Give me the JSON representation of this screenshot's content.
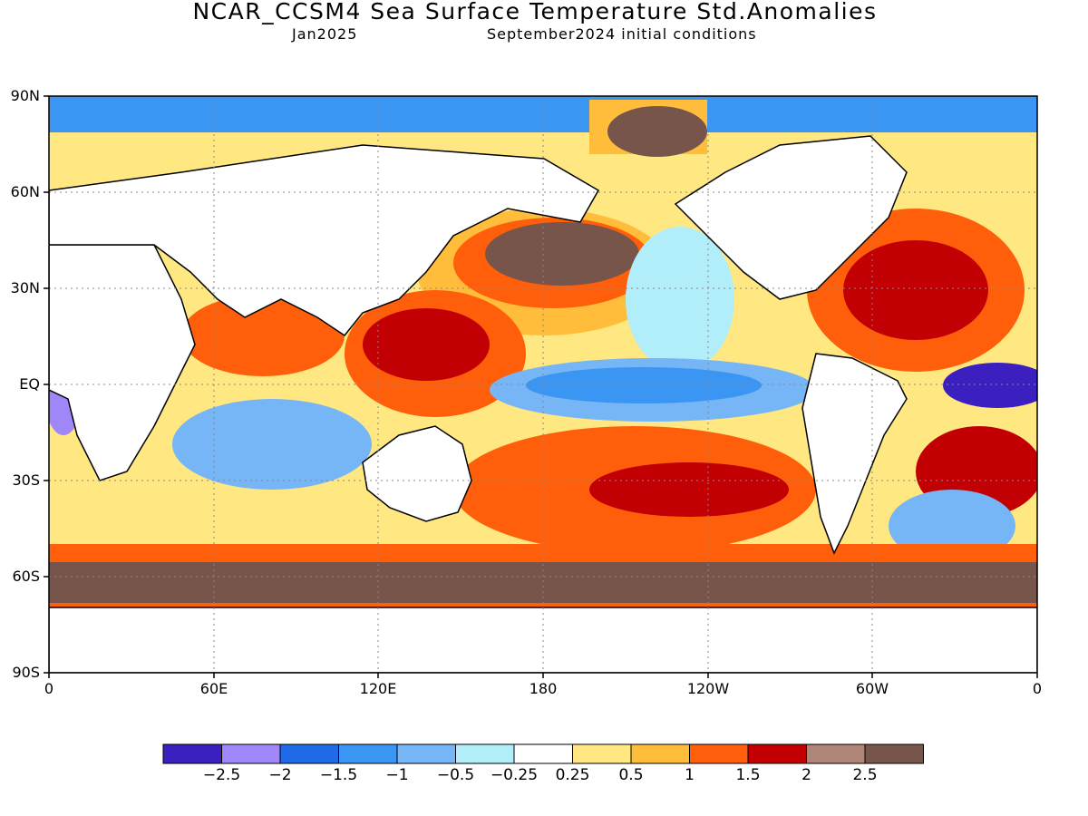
{
  "header": {
    "title": "NCAR_CCSM4 Sea Surface Temperature Std.Anomalies",
    "valid": "Jan2025",
    "init": "September2024 initial conditions"
  },
  "map": {
    "lat_labels": [
      "90N",
      "60N",
      "30N",
      "EQ",
      "30S",
      "60S",
      "90S"
    ],
    "lon_labels": [
      "0",
      "60E",
      "120E",
      "180",
      "120W",
      "60W",
      "0"
    ],
    "land_color": "#ffffff",
    "coast_color": "#000000",
    "grid": "dotted"
  },
  "colorbar": {
    "colors": [
      "#3b1fbf",
      "#9f87fa",
      "#1f6ae5",
      "#3b95f2",
      "#76b6f6",
      "#b2eefa",
      "#ffffff",
      "#ffe781",
      "#ffbd3b",
      "#ff5f0a",
      "#c20003",
      "#ae8577",
      "#77554a"
    ],
    "labels": [
      "−2.5",
      "−2",
      "−1.5",
      "−1",
      "−0.5",
      "−0.25",
      "0.25",
      "0.5",
      "1",
      "1.5",
      "2",
      "2.5"
    ]
  }
}
